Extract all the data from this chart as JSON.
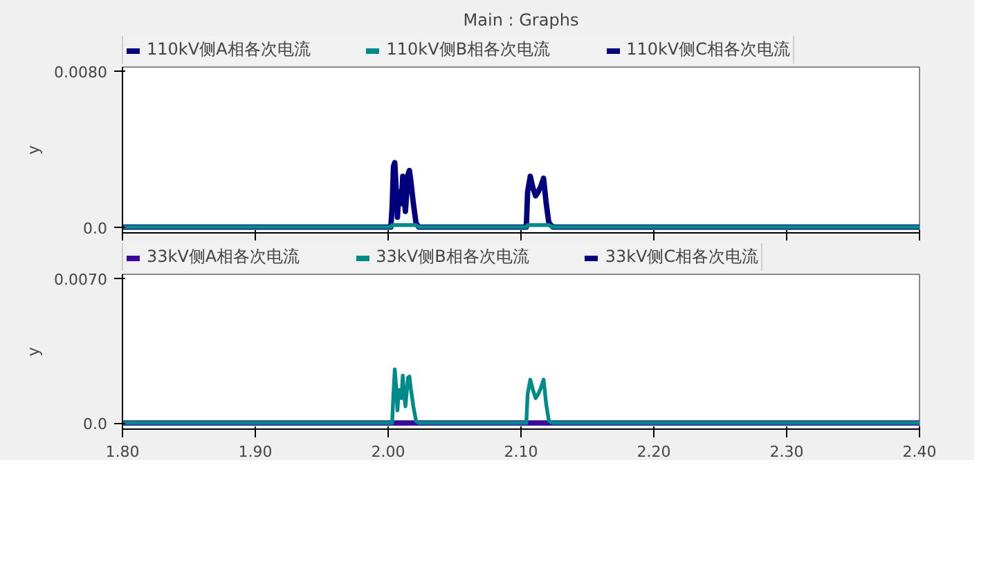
{
  "chart_data": [
    {
      "type": "line",
      "title": "Main : Graphs",
      "ylabel": "y",
      "xlim": [
        1.8,
        2.4
      ],
      "ylim": [
        -0.0003,
        0.0082
      ],
      "yticks": [
        {
          "value": 0,
          "label": "0.0"
        },
        {
          "value": 0.008,
          "label": "0.0080"
        }
      ],
      "xticks": [
        1.8,
        1.9,
        2.0,
        2.1,
        2.2,
        2.3,
        2.4
      ],
      "tick_labels": "y",
      "legend": "top",
      "grid": false,
      "x": [
        1.8,
        1.95,
        2.002,
        2.003,
        2.004,
        2.005,
        2.006,
        2.007,
        2.008,
        2.01,
        2.011,
        2.012,
        2.013,
        2.015,
        2.016,
        2.017,
        2.019,
        2.021,
        2.023,
        2.104,
        2.105,
        2.107,
        2.109,
        2.111,
        2.113,
        2.115,
        2.117,
        2.119,
        2.121,
        2.124,
        2.4
      ],
      "series": [
        {
          "name": "110kV侧A相各次电流",
          "color": "#00007f",
          "values": [
            0,
            0,
            0,
            0.001,
            0.0031,
            0.0033,
            0.002,
            0.0005,
            0.0018,
            0.0012,
            0.0026,
            0.0015,
            0.0008,
            0.0027,
            0.0029,
            0.0024,
            0.0012,
            0.0002,
            0,
            0,
            0.0018,
            0.0026,
            0.002,
            0.0016,
            0.0018,
            0.0021,
            0.0025,
            0.0012,
            0.0002,
            0,
            0
          ]
        },
        {
          "name": "110kV侧B相各次电流",
          "color": "#008b8b",
          "values": [
            0,
            0,
            0,
            0.0001,
            0.0001,
            0.0001,
            0.0001,
            0.0001,
            0.0001,
            0.0001,
            0.0001,
            0.0001,
            0.0001,
            0.0001,
            0.0001,
            0.0001,
            0.0001,
            0.0001,
            0,
            0,
            0.0001,
            0.0001,
            0.0001,
            0.0001,
            0.0001,
            0.0001,
            0.0001,
            0.0001,
            0.0001,
            0,
            0
          ]
        },
        {
          "name": "110kV侧C相各次电流",
          "color": "#00007f",
          "values": [
            null,
            null,
            null,
            null,
            null,
            null,
            null,
            null,
            null,
            null,
            null,
            null,
            null,
            null,
            null,
            null,
            null,
            null,
            null,
            null,
            null,
            null,
            null,
            null,
            null,
            null,
            null,
            null,
            null,
            null,
            null
          ]
        }
      ]
    },
    {
      "type": "line",
      "ylabel": "y",
      "xlim": [
        1.8,
        2.4
      ],
      "ylim": [
        -0.0003,
        0.0072
      ],
      "yticks": [
        {
          "value": 0,
          "label": "0.0"
        },
        {
          "value": 0.007,
          "label": "0.0070"
        }
      ],
      "xticks": [
        {
          "value": 1.8,
          "label": "1.80"
        },
        {
          "value": 1.9,
          "label": "1.90"
        },
        {
          "value": 2.0,
          "label": "2.00"
        },
        {
          "value": 2.1,
          "label": "2.10"
        },
        {
          "value": 2.2,
          "label": "2.20"
        },
        {
          "value": 2.3,
          "label": "2.30"
        },
        {
          "value": 2.4,
          "label": "2.40"
        }
      ],
      "legend": "top",
      "grid": false,
      "x": [
        1.8,
        2.003,
        2.004,
        2.005,
        2.006,
        2.007,
        2.008,
        2.01,
        2.011,
        2.012,
        2.013,
        2.015,
        2.016,
        2.017,
        2.019,
        2.021,
        2.023,
        2.104,
        2.105,
        2.107,
        2.109,
        2.111,
        2.113,
        2.115,
        2.117,
        2.119,
        2.121,
        2.124,
        2.4
      ],
      "series": [
        {
          "name": "33kV侧A相各次电流",
          "color": "#3a0a9f",
          "values": [
            0,
            0,
            0,
            0,
            0,
            0,
            0,
            0,
            0,
            0,
            0,
            0,
            0,
            0,
            0,
            0,
            0,
            0,
            0,
            0,
            0,
            0,
            0,
            0,
            0,
            0,
            0,
            0,
            0
          ]
        },
        {
          "name": "33kV侧B相各次电流",
          "color": "#008b8b",
          "values": [
            0,
            0,
            0.0014,
            0.0026,
            0.0018,
            0.0006,
            0.0016,
            0.0012,
            0.0023,
            0.0014,
            0.0008,
            0.0022,
            0.00225,
            0.0017,
            0.0008,
            0.0001,
            0,
            0,
            0.0014,
            0.0021,
            0.0016,
            0.0012,
            0.0014,
            0.0017,
            0.0021,
            0.0009,
            0.0001,
            0,
            0
          ]
        },
        {
          "name": "33kV侧C相各次电流",
          "color": "#00007f",
          "values": [
            null,
            null,
            null,
            null,
            null,
            null,
            null,
            null,
            null,
            null,
            null,
            null,
            null,
            null,
            null,
            null,
            null,
            null,
            null,
            null,
            null,
            null,
            null,
            null,
            null,
            null,
            null,
            null,
            null
          ]
        }
      ]
    }
  ]
}
